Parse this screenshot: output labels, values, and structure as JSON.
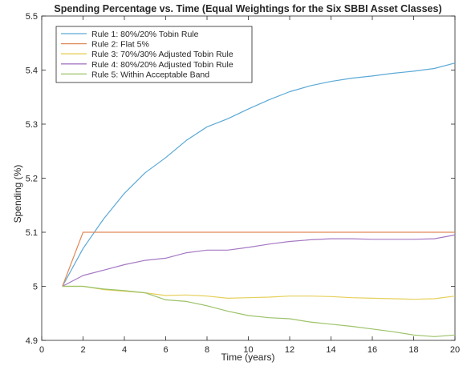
{
  "chart_data": {
    "type": "line",
    "title": "Spending Percentage vs. Time (Equal Weightings for the Six SBBI Asset Classes)",
    "xlabel": "Time (years)",
    "ylabel": "Spending (%)",
    "xlim": [
      0,
      20
    ],
    "ylim": [
      4.9,
      5.5
    ],
    "xticks": [
      0,
      2,
      4,
      6,
      8,
      10,
      12,
      14,
      16,
      18,
      20
    ],
    "yticks": [
      4.9,
      5,
      5.1,
      5.2,
      5.3,
      5.4,
      5.5
    ],
    "ytick_labels": [
      "4.9",
      "5",
      "5.1",
      "5.2",
      "5.3",
      "5.4",
      "5.5"
    ],
    "grid": false,
    "legend_position": "top-left",
    "x": [
      1,
      2,
      3,
      4,
      5,
      6,
      7,
      8,
      9,
      10,
      11,
      12,
      13,
      14,
      15,
      16,
      17,
      18,
      19,
      20
    ],
    "series": [
      {
        "name": "Rule 1: 80%/20% Tobin Rule",
        "color": "#5aa9d6",
        "values": [
          5.0,
          5.07,
          5.125,
          5.172,
          5.21,
          5.238,
          5.27,
          5.295,
          5.31,
          5.328,
          5.345,
          5.36,
          5.371,
          5.379,
          5.385,
          5.389,
          5.394,
          5.398,
          5.403,
          5.413
        ]
      },
      {
        "name": "Rule 2: Flat 5%",
        "color": "#e08a5b",
        "values": [
          5.0,
          5.1,
          5.1,
          5.1,
          5.1,
          5.1,
          5.1,
          5.1,
          5.1,
          5.1,
          5.1,
          5.1,
          5.1,
          5.1,
          5.1,
          5.1,
          5.1,
          5.1,
          5.1,
          5.1
        ]
      },
      {
        "name": "Rule 3: 70%/30% Adjusted Tobin Rule",
        "color": "#e6cf5a",
        "values": [
          5.0,
          5.0,
          4.994,
          4.991,
          4.988,
          4.983,
          4.984,
          4.982,
          4.978,
          4.979,
          4.98,
          4.982,
          4.982,
          4.981,
          4.979,
          4.978,
          4.977,
          4.976,
          4.977,
          4.982
        ]
      },
      {
        "name": "Rule 4: 80%/20% Adjusted Tobin Rule",
        "color": "#a578c4",
        "values": [
          5.0,
          5.02,
          5.03,
          5.04,
          5.048,
          5.052,
          5.062,
          5.067,
          5.067,
          5.072,
          5.078,
          5.083,
          5.086,
          5.088,
          5.088,
          5.087,
          5.087,
          5.087,
          5.088,
          5.095
        ]
      },
      {
        "name": "Rule 5: Within Acceptable Band",
        "color": "#9cc269",
        "values": [
          5.0,
          5.0,
          4.995,
          4.992,
          4.988,
          4.975,
          4.972,
          4.964,
          4.954,
          4.946,
          4.942,
          4.94,
          4.934,
          4.93,
          4.926,
          4.921,
          4.916,
          4.91,
          4.907,
          4.91
        ]
      }
    ]
  }
}
